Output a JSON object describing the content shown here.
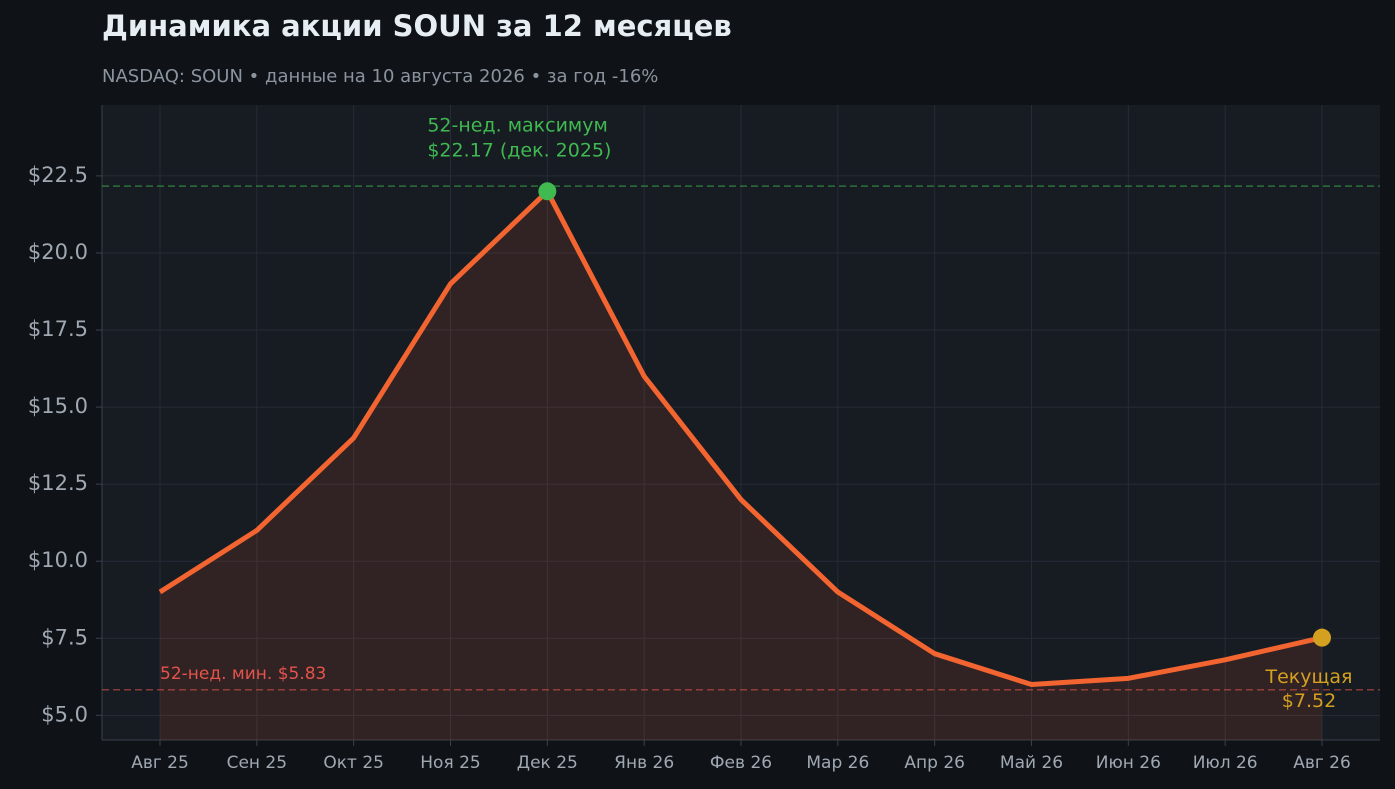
{
  "chart_data": {
    "type": "line",
    "title": "Динамика акции SOUN за 12 месяцев",
    "subtitle": "NASDAQ: SOUN  •  данные на 10 августа 2026  •  за год -16%",
    "categories": [
      "Авг 25",
      "Сен 25",
      "Окт 25",
      "Ноя 25",
      "Дек 25",
      "Янв 26",
      "Фев 26",
      "Мар 26",
      "Апр 26",
      "Май 26",
      "Июн 26",
      "Июл 26",
      "Авг 26"
    ],
    "series": [
      {
        "color": "#f26430",
        "values": [
          9.0,
          11.0,
          14.0,
          19.0,
          22.0,
          16.0,
          12.0,
          9.0,
          7.0,
          6.0,
          6.2,
          6.8,
          7.52
        ]
      }
    ],
    "ylim": [
      4.2,
      24.8
    ],
    "yticks": [
      {
        "value": 5.0,
        "label": "$5.0"
      },
      {
        "value": 7.5,
        "label": "$7.5"
      },
      {
        "value": 10.0,
        "label": "$10.0"
      },
      {
        "value": 12.5,
        "label": "$12.5"
      },
      {
        "value": 15.0,
        "label": "$15.0"
      },
      {
        "value": 17.5,
        "label": "$17.5"
      },
      {
        "value": 20.0,
        "label": "$20.0"
      },
      {
        "value": 22.5,
        "label": "$22.5"
      }
    ],
    "grid": true,
    "reference_lines": [
      {
        "value": 22.17,
        "color": "#3fb950",
        "labels": [
          "52-нед. максимум",
          "$22.17 (дек. 2025)"
        ]
      },
      {
        "value": 5.83,
        "color": "#e5534b",
        "labels": [
          "52-нед. мин. $5.83"
        ]
      }
    ],
    "highlights": [
      {
        "index": 4,
        "color": "#3fb950"
      },
      {
        "index": 12,
        "color": "#d4a020",
        "labels": [
          "Текущая",
          "$7.52"
        ]
      }
    ]
  }
}
